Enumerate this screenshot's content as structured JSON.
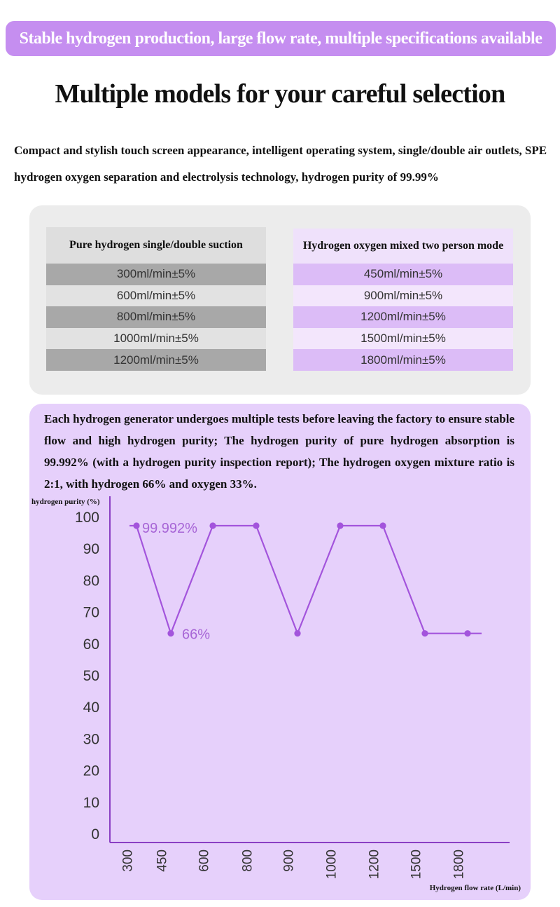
{
  "banner": "Stable hydrogen production, large flow rate, multiple specifications available",
  "headline": "Multiple models for your careful selection",
  "intro": "Compact and stylish touch screen appearance, intelligent operating system, single/double air outlets, SPE hydrogen oxygen separation and electrolysis technology, hydrogen purity of 99.99%",
  "specs": {
    "pure": {
      "title": "Pure hydrogen single/double suction",
      "rows": [
        "300ml/min±5%",
        "600ml/min±5%",
        "800ml/min±5%",
        "1000ml/min±5%",
        "1200ml/min±5%"
      ]
    },
    "mixed": {
      "title": "Hydrogen oxygen mixed two person mode",
      "rows": [
        "450ml/min±5%",
        "900ml/min±5%",
        "1200ml/min±5%",
        "1500ml/min±5%",
        "1800ml/min±5%"
      ]
    }
  },
  "note": "Each hydrogen generator undergoes multiple tests before leaving the factory to ensure stable flow and high hydrogen purity; The hydrogen purity of pure hydrogen absorption is 99.992% (with a hydrogen purity inspection report); The hydrogen oxygen mixture ratio is 2:1, with hydrogen 66% and oxygen 33%.",
  "chart_data": {
    "type": "line",
    "title": "",
    "ylabel": "hydrogen purity (%)",
    "xlabel": "Hydrogen flow rate (L/min)",
    "categories": [
      "300",
      "450",
      "600",
      "800",
      "900",
      "1000",
      "1200",
      "1500",
      "1800"
    ],
    "values": [
      99.992,
      66,
      99.992,
      99.992,
      66,
      99.992,
      99.992,
      66,
      66
    ],
    "yticks": [
      0,
      10,
      20,
      30,
      40,
      50,
      60,
      70,
      80,
      90,
      100
    ],
    "ylim": [
      0,
      100
    ],
    "grid": false,
    "annotations": [
      {
        "label": "99.992%",
        "index": 0
      },
      {
        "label": "66%",
        "index": 1
      }
    ],
    "colors": {
      "line": "#a354dc",
      "annotation": "#a765d6",
      "axis": "#8a3fc4"
    }
  }
}
